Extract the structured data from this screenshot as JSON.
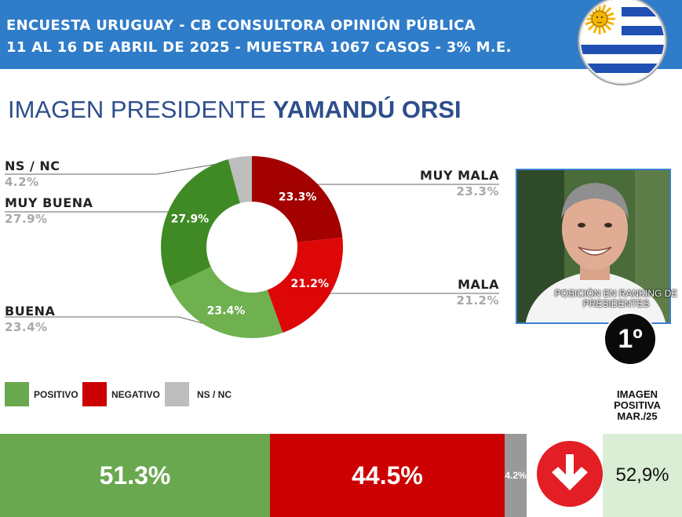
{
  "header": {
    "line1": "ENCUESTA URUGUAY - CB CONSULTORA OPINIÓN PÚBLICA",
    "line2": "11 AL 16 DE ABRIL DE 2025 - MUESTRA 1067 CASOS - 3% M.E."
  },
  "title": {
    "prefix": "IMAGEN PRESIDENTE",
    "name": "YAMANDÚ ORSI"
  },
  "colors": {
    "muy_mala": "#a30000",
    "mala": "#dd0707",
    "buena": "#6fb04f",
    "muy_buena": "#3f8a24",
    "ns_nc": "#bdbdbd",
    "positivo": "#6aa84f",
    "negativo": "#cc0000",
    "header": "#2f7cc9",
    "arrow": "#e31e24"
  },
  "chart_data": [
    {
      "type": "pie",
      "donut": true,
      "slices": [
        {
          "label": "MUY MALA",
          "value": 23.3,
          "value_label": "23.3%",
          "color": "#a30000"
        },
        {
          "label": "MALA",
          "value": 21.2,
          "value_label": "21.2%",
          "color": "#dd0707"
        },
        {
          "label": "BUENA",
          "value": 23.4,
          "value_label": "23.4%",
          "color": "#6fb04f"
        },
        {
          "label": "MUY BUENA",
          "value": 27.9,
          "value_label": "27.9%",
          "color": "#3f8a24"
        },
        {
          "label": "NS / NC",
          "value": 4.2,
          "value_label": "4.2%",
          "color": "#bdbdbd"
        }
      ]
    },
    {
      "type": "bar",
      "orientation": "horizontal-stacked",
      "segments": [
        {
          "label": "POSITIVO",
          "value": 51.3,
          "value_label": "51.3%",
          "color": "#6aa84f"
        },
        {
          "label": "NEGATIVO",
          "value": 44.5,
          "value_label": "44.5%",
          "color": "#cc0000"
        },
        {
          "label": "NS / NC",
          "value": 4.2,
          "value_label": "4.2%",
          "color": "#999999"
        }
      ]
    }
  ],
  "labels": {
    "ns_nc": {
      "name": "NS / NC",
      "pct": "4.2%"
    },
    "muy_buena": {
      "name": "MUY BUENA",
      "pct": "27.9%"
    },
    "buena": {
      "name": "BUENA",
      "pct": "23.4%"
    },
    "muy_mala": {
      "name": "MUY MALA",
      "pct": "23.3%"
    },
    "mala": {
      "name": "MALA",
      "pct": "21.2%"
    }
  },
  "ranking": {
    "text": "POSICIÓN EN RANKING DE PRESIDENTES",
    "position": "1º"
  },
  "legend": [
    {
      "label": "POSITIVO",
      "color": "#6aa84f"
    },
    {
      "label": "NEGATIVO",
      "color": "#cc0000"
    },
    {
      "label": "NS / NC",
      "color": "#bdbdbd"
    }
  ],
  "previous": {
    "title": "IMAGEN POSITIVA MAR./25",
    "value": "52,9%",
    "trend": "down"
  },
  "icons": {
    "flag": "uruguay-flag-icon",
    "arrow": "arrow-down-icon"
  }
}
